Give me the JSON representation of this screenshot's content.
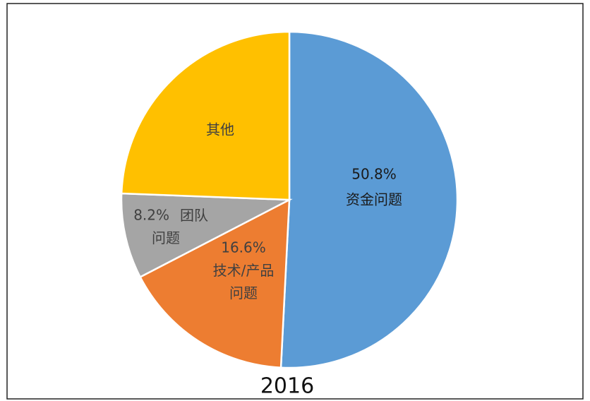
{
  "chart_data": {
    "type": "pie",
    "title": "2016",
    "categories": [
      "资金问题",
      "技术/产品问题",
      "团队问题",
      "其他"
    ],
    "values": [
      50.8,
      16.6,
      8.2,
      24.4
    ],
    "value_labels": [
      "50.8%",
      "16.6%",
      "8.2%",
      null
    ],
    "colors": [
      "#5b9bd5",
      "#ed7d31",
      "#a5a5a5",
      "#ffc000"
    ]
  }
}
